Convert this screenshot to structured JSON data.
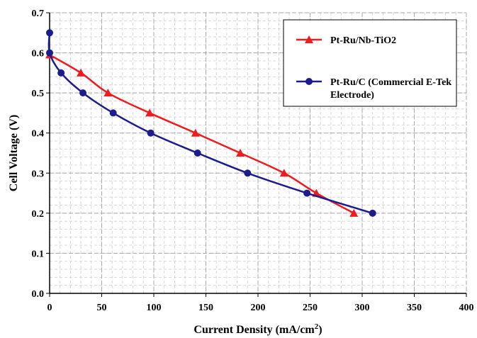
{
  "chart_data": {
    "type": "line",
    "xlabel": "Current Density (mA/cm²)",
    "xlabel_main": "Current Density (mA/cm",
    "xlabel_sup": "2",
    "xlabel_end": ")",
    "ylabel": "Cell Voltage (V)",
    "xlim": [
      0,
      400
    ],
    "ylim": [
      0,
      0.7
    ],
    "x_ticks": [
      "0",
      "50",
      "100",
      "150",
      "200",
      "250",
      "300",
      "350",
      "400"
    ],
    "y_ticks": [
      "0.0",
      "0.1",
      "0.2",
      "0.3",
      "0.4",
      "0.5",
      "0.6",
      "0.7"
    ],
    "grid": true,
    "legend_position": "top-right",
    "series": [
      {
        "name": "Pt-Ru/Nb-TiO2",
        "legend_lines": [
          "Pt-Ru/Nb-TiO2"
        ],
        "color": "#ee1c1c",
        "marker": "triangle",
        "x": [
          0,
          30,
          56,
          96,
          140,
          183,
          225,
          256,
          292
        ],
        "y": [
          0.595,
          0.55,
          0.5,
          0.45,
          0.4,
          0.35,
          0.3,
          0.25,
          0.2
        ]
      },
      {
        "name": "Pt-Ru/C (Commercial E-Tek Electrode)",
        "legend_lines": [
          "Pt-Ru/C (Commercial E-Tek",
          "Electrode)"
        ],
        "color": "#1c1c8c",
        "marker": "circle",
        "x": [
          0,
          0,
          11,
          32,
          61,
          97,
          142,
          190,
          247,
          310
        ],
        "y": [
          0.65,
          0.6,
          0.55,
          0.5,
          0.45,
          0.4,
          0.35,
          0.3,
          0.25,
          0.2
        ]
      }
    ]
  }
}
